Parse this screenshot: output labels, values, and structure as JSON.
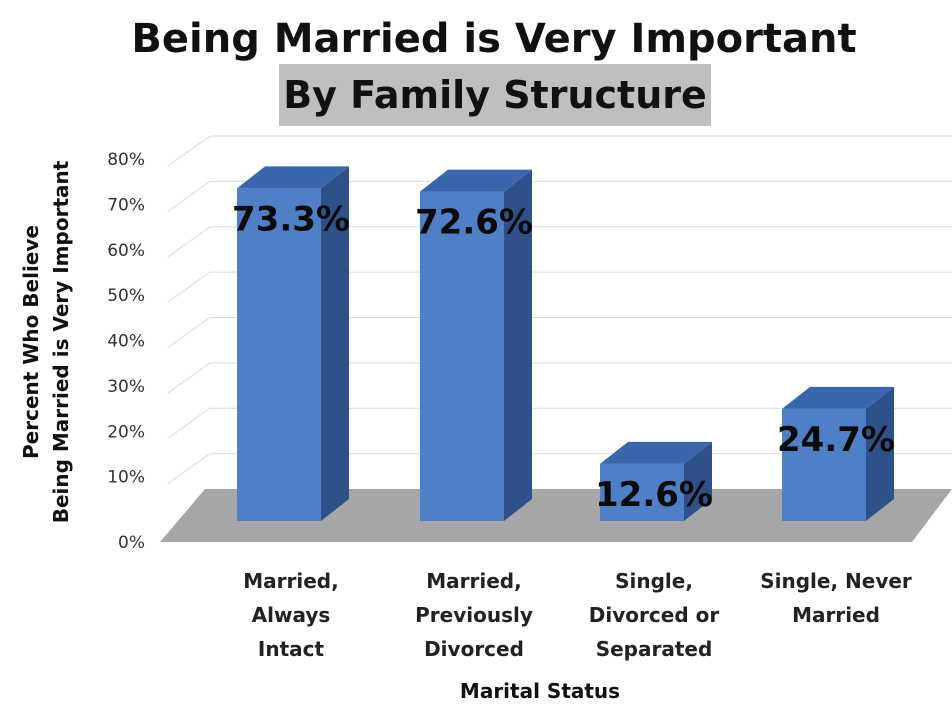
{
  "chart_data": {
    "type": "bar",
    "title": "Being Married is Very Important",
    "subtitle": "By Family Structure",
    "xlabel": "Marital Status",
    "ylabel": [
      "Percent Who Believe",
      "Being Married is Very Important"
    ],
    "categories": [
      [
        "Married,",
        "Always",
        "Intact"
      ],
      [
        "Married,",
        "Previously",
        "Divorced"
      ],
      [
        "Single,",
        "Divorced or",
        "Separated"
      ],
      [
        "Single, Never",
        "Married"
      ]
    ],
    "values": [
      73.3,
      72.6,
      12.6,
      24.7
    ],
    "data_labels": [
      "73.3%",
      "72.6%",
      "12.6%",
      "24.7%"
    ],
    "ylim": [
      0,
      80
    ],
    "yticks": [
      "0%",
      "10%",
      "20%",
      "30%",
      "40%",
      "50%",
      "60%",
      "70%",
      "80%"
    ],
    "grid": true,
    "legend": "none",
    "colors": {
      "bar_front": "#4f7fc7",
      "bar_side": "#2f5189",
      "bar_top": "#3a66ad",
      "floor": "#a6a6a6",
      "subtitle_bg": "#bfbfbf",
      "grid": "#d9d9d9"
    }
  }
}
